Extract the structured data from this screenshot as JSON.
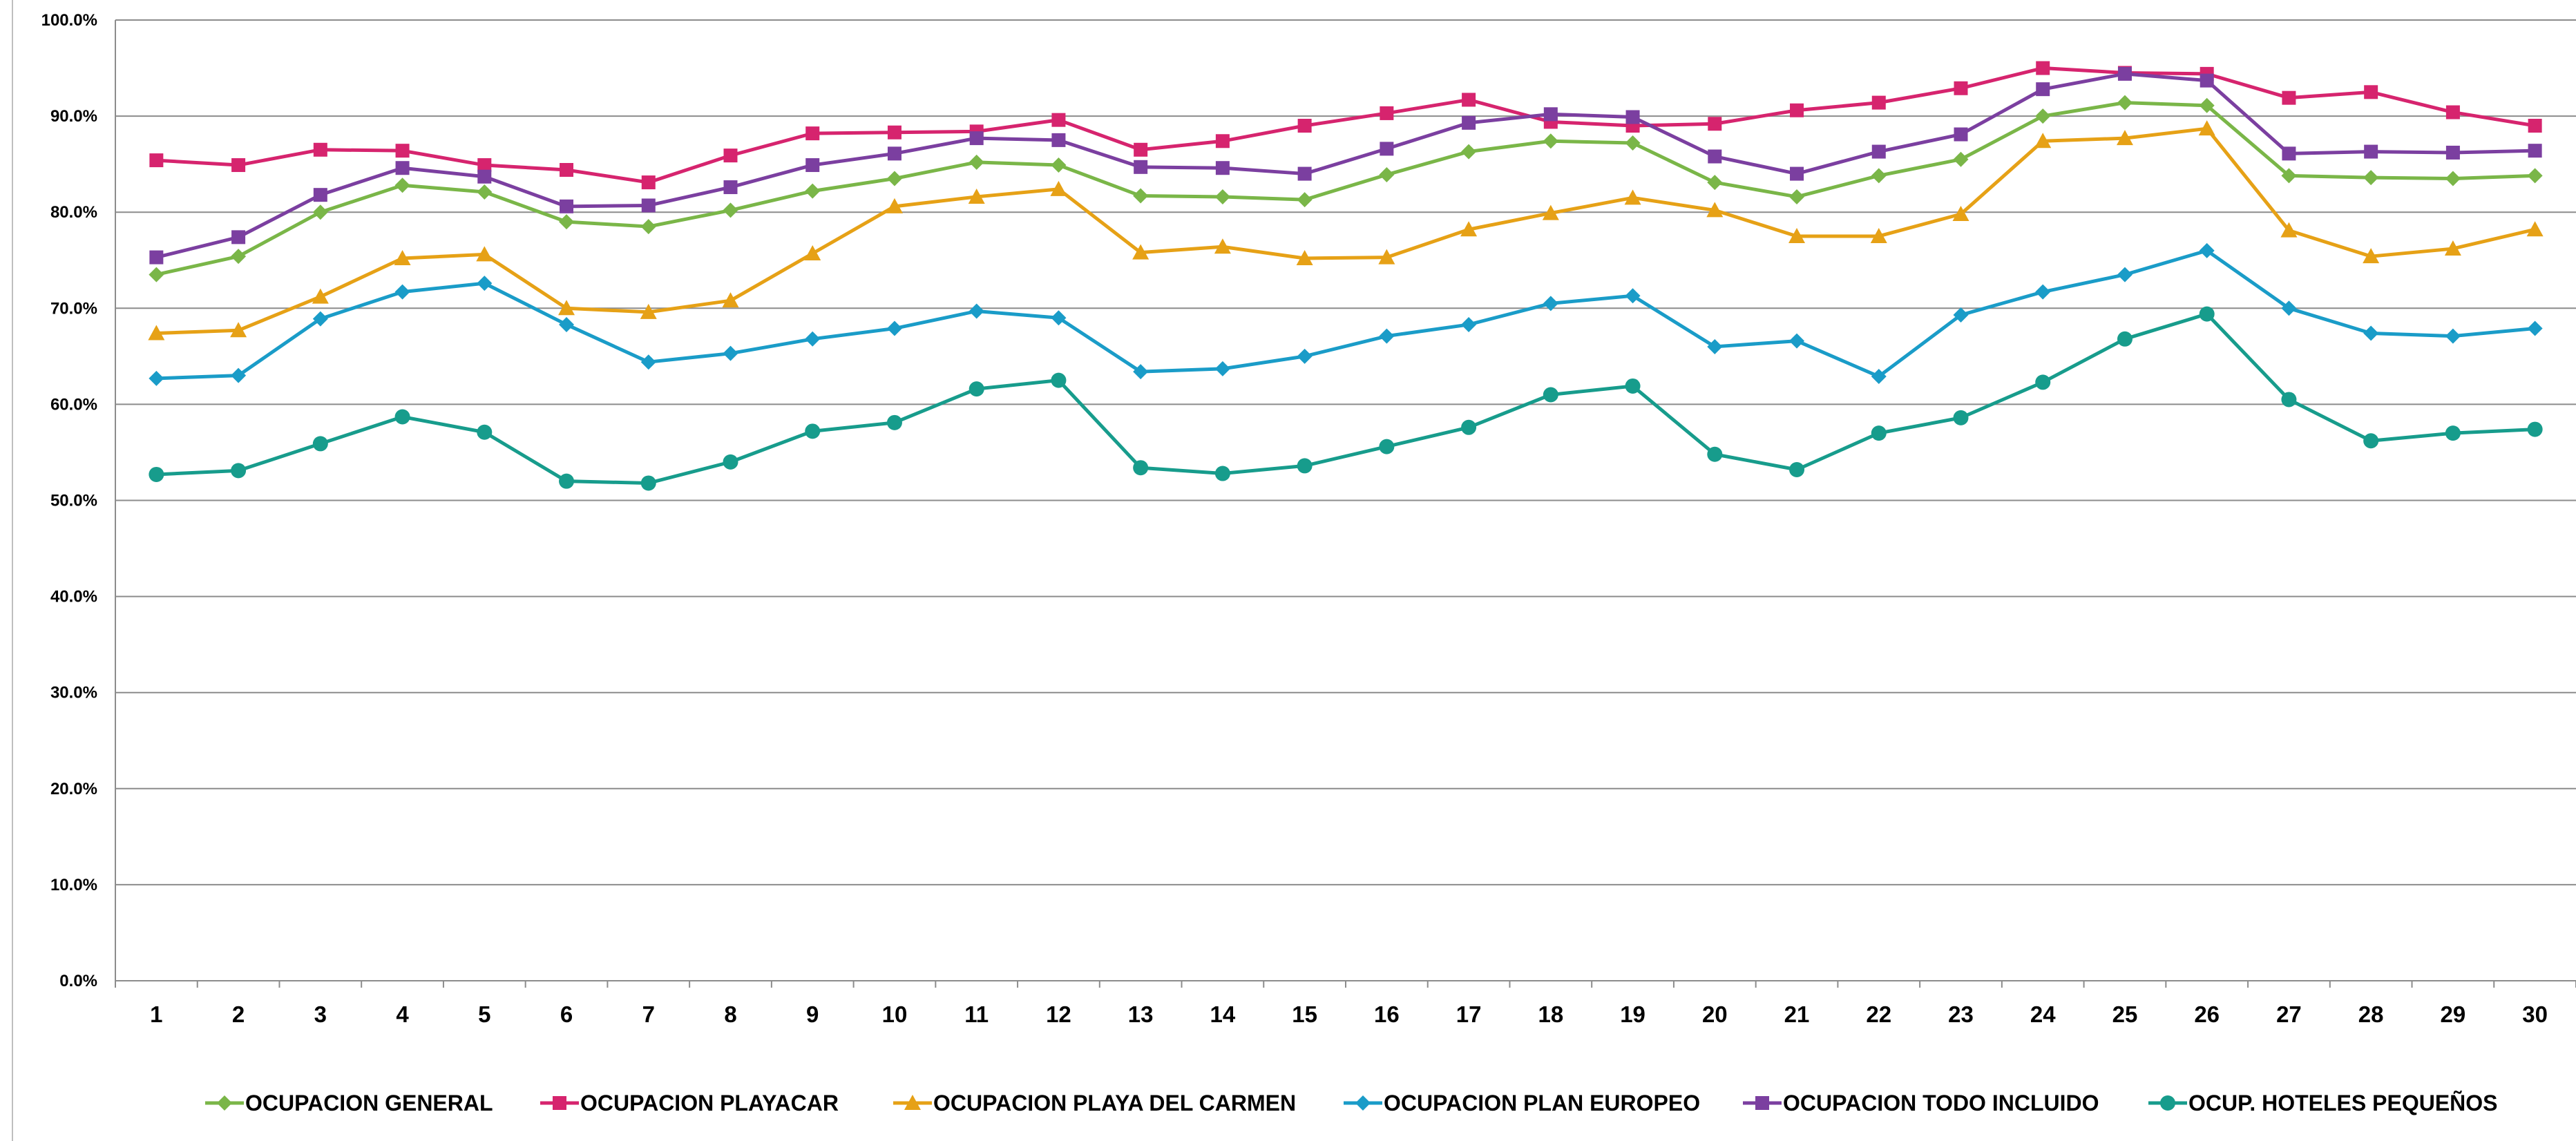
{
  "chart_data": {
    "type": "line",
    "title": "",
    "xlabel": "",
    "ylabel": "",
    "ylim": [
      0,
      100
    ],
    "y_ticks": [
      "0.0%",
      "10.0%",
      "20.0%",
      "30.0%",
      "40.0%",
      "50.0%",
      "60.0%",
      "70.0%",
      "80.0%",
      "90.0%",
      "100.0%"
    ],
    "y_tick_values": [
      0,
      10,
      20,
      30,
      40,
      50,
      60,
      70,
      80,
      90,
      100
    ],
    "grid": true,
    "legend_position": "bottom",
    "categories": [
      "1",
      "2",
      "3",
      "4",
      "5",
      "6",
      "7",
      "8",
      "9",
      "10",
      "11",
      "12",
      "13",
      "14",
      "15",
      "16",
      "17",
      "18",
      "19",
      "20",
      "21",
      "22",
      "23",
      "24",
      "25",
      "26",
      "27",
      "28",
      "29",
      "30"
    ],
    "series": [
      {
        "name": "OCUPACION GENERAL",
        "color": "#7ab648",
        "marker": "diamond",
        "values": [
          73.5,
          75.4,
          80.0,
          82.8,
          82.1,
          79.0,
          78.5,
          80.2,
          82.2,
          83.5,
          85.2,
          84.9,
          81.7,
          81.6,
          81.3,
          83.9,
          86.3,
          87.4,
          87.2,
          83.1,
          81.6,
          83.8,
          85.5,
          90.0,
          91.4,
          91.1,
          83.8,
          83.6,
          83.5,
          83.8
        ]
      },
      {
        "name": "OCUPACION PLAYACAR",
        "color": "#d6246e",
        "marker": "square",
        "values": [
          85.4,
          84.9,
          86.5,
          86.4,
          84.9,
          84.4,
          83.1,
          85.9,
          88.2,
          88.3,
          88.4,
          89.6,
          86.5,
          87.4,
          89.0,
          90.3,
          91.7,
          89.4,
          89.0,
          89.2,
          90.6,
          91.4,
          92.9,
          95.0,
          94.5,
          94.4,
          91.9,
          92.5,
          90.4,
          89.0
        ]
      },
      {
        "name": "OCUPACION PLAYA DEL CARMEN",
        "color": "#e6a116",
        "marker": "triangle",
        "values": [
          67.4,
          67.7,
          71.2,
          75.2,
          75.6,
          70.0,
          69.6,
          70.8,
          75.7,
          80.6,
          81.6,
          82.4,
          75.8,
          76.4,
          75.2,
          75.3,
          78.2,
          79.9,
          81.5,
          80.2,
          77.5,
          77.5,
          79.8,
          87.4,
          87.7,
          88.7,
          78.1,
          75.4,
          76.2,
          78.2
        ]
      },
      {
        "name": "OCUPACION PLAN EUROPEO",
        "color": "#1a9cc8",
        "marker": "diamond",
        "values": [
          62.7,
          63.0,
          68.9,
          71.7,
          72.6,
          68.3,
          64.4,
          65.3,
          66.8,
          67.9,
          69.7,
          69.0,
          63.4,
          63.7,
          65.0,
          67.1,
          68.3,
          70.5,
          71.3,
          66.0,
          66.6,
          62.9,
          69.3,
          71.7,
          73.5,
          76.0,
          70.0,
          67.4,
          67.1,
          67.9
        ]
      },
      {
        "name": "OCUPACION TODO INCLUIDO",
        "color": "#7b3fa0",
        "marker": "square",
        "values": [
          75.3,
          77.4,
          81.8,
          84.6,
          83.7,
          80.6,
          80.7,
          82.6,
          84.9,
          86.1,
          87.7,
          87.5,
          84.7,
          84.6,
          84.0,
          86.6,
          89.3,
          90.2,
          89.9,
          85.8,
          84.0,
          86.3,
          88.1,
          92.8,
          94.4,
          93.7,
          86.1,
          86.3,
          86.2,
          86.4
        ]
      },
      {
        "name": "OCUP. HOTELES PEQUEÑOS",
        "color": "#179c8c",
        "marker": "circle",
        "values": [
          52.7,
          53.1,
          55.9,
          58.7,
          57.1,
          52.0,
          51.8,
          54.0,
          57.2,
          58.1,
          61.6,
          62.5,
          53.4,
          52.8,
          53.6,
          55.6,
          57.6,
          61.0,
          61.9,
          54.8,
          53.2,
          57.0,
          58.6,
          62.3,
          66.8,
          69.4,
          60.5,
          56.2,
          57.0,
          57.4
        ]
      }
    ]
  }
}
